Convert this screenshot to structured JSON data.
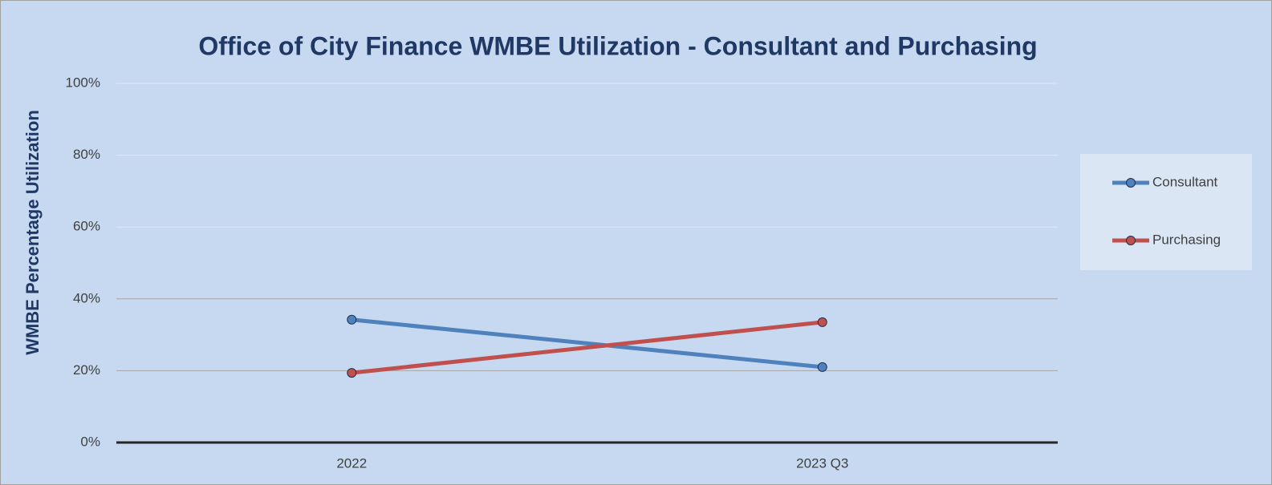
{
  "chart_data": {
    "type": "line",
    "title": "Office of City Finance WMBE Utilization - Consultant and Purchasing",
    "y_label": "WMBE Percentage Utilization",
    "categories": [
      "2022",
      "2023 Q3"
    ],
    "series": [
      {
        "name": "Consultant",
        "color": "#4f81bd",
        "values": [
          34.2,
          21.0
        ]
      },
      {
        "name": "Purchasing",
        "color": "#c0504d",
        "values": [
          19.4,
          33.5
        ]
      }
    ],
    "ylim": [
      0,
      100
    ],
    "yticks": [
      {
        "value": 0,
        "label": "0%"
      },
      {
        "value": 20,
        "label": "20%"
      },
      {
        "value": 40,
        "label": "40%"
      },
      {
        "value": 60,
        "label": "60%"
      },
      {
        "value": 80,
        "label": "80%"
      },
      {
        "value": 100,
        "label": "100%"
      }
    ],
    "grid": true,
    "legend": "right"
  }
}
